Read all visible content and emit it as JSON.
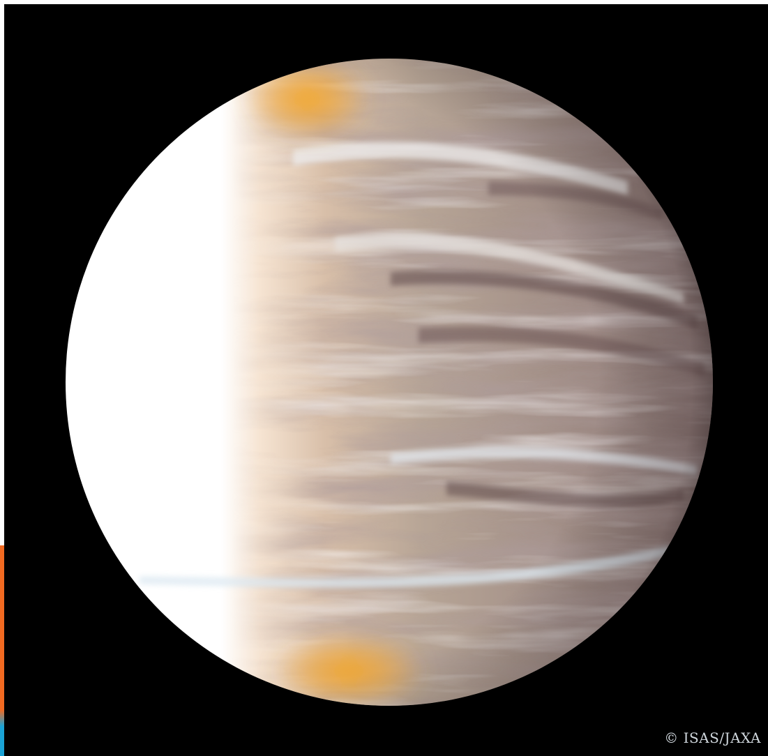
{
  "image": {
    "subject_colors": {
      "background": "#000000",
      "lit_limb": "#ffffff",
      "cloud_base": "#b7a596",
      "cloud_dark": "#6e5656",
      "terminator_orange": "#f5a11a",
      "accent_orange": "#f26a21",
      "accent_blue": "#1aa3d6"
    }
  },
  "credit": {
    "text": "© ISAS/JAXA"
  }
}
